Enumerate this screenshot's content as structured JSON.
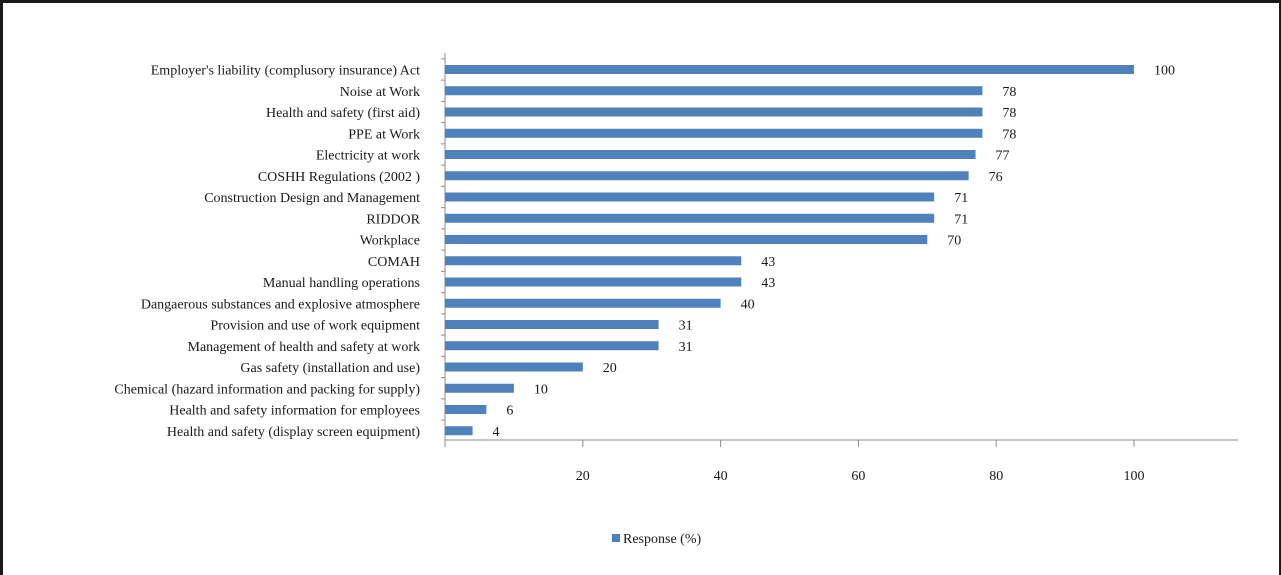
{
  "chart_data": {
    "type": "bar",
    "orientation": "horizontal",
    "categories": [
      "Employer's liability (complusory insurance) Act",
      "Noise at Work",
      "Health and safety (first aid)",
      "PPE at Work",
      "Electricity at work",
      "COSHH Regulations (2002 )",
      "Construction Design and Management",
      "RIDDOR",
      "Workplace",
      "COMAH",
      "Manual handling operations",
      "Dangaerous substances and explosive atmosphere",
      "Provision and use of work equipment",
      "Management of health and safety at work",
      "Gas safety (installation and use)",
      "Chemical (hazard information and packing for supply)",
      "Health and safety information for employees",
      "Health and safety (display screen equipment)"
    ],
    "series": [
      {
        "name": "Response (%)",
        "values": [
          100,
          78,
          78,
          78,
          77,
          76,
          71,
          71,
          70,
          43,
          43,
          40,
          31,
          31,
          20,
          10,
          6,
          4
        ],
        "color": "#4f81bd"
      }
    ],
    "xticks": [
      20,
      40,
      60,
      80,
      100
    ],
    "xlim": [
      0,
      115
    ],
    "legend_position": "bottom",
    "grid": false
  }
}
